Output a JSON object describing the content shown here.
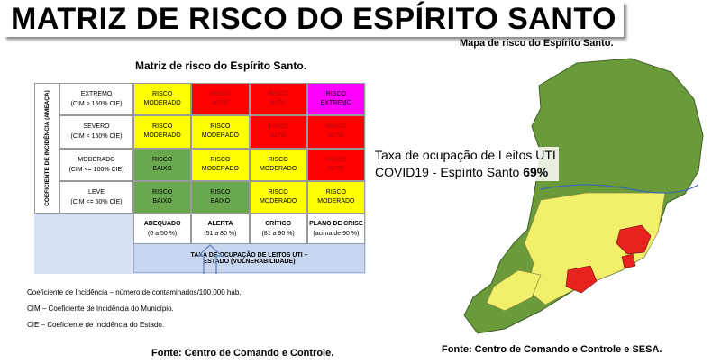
{
  "header": {
    "title": "MATRIZ DE RISCO DO ESPÍRITO SANTO"
  },
  "matrix": {
    "title": "Matriz de risco do Espírito Santo.",
    "y_axis_label": "COEFICIENTE DE INCIDÊNCIA (AMEAÇA)",
    "rows": [
      {
        "label": "EXTREMO",
        "sublabel": "(CIM > 150% CIE)",
        "cells": [
          {
            "text": "RISCO MODERADO",
            "color": "#ffff00"
          },
          {
            "text": "RISCO ALTO",
            "color": "#ff0000"
          },
          {
            "text": "RISCO ALTO",
            "color": "#ff0000"
          },
          {
            "text": "RISCO EXTREMO",
            "color": "#ff00ff"
          }
        ]
      },
      {
        "label": "SEVERO",
        "sublabel": "(CIM < 150% CIE)",
        "cells": [
          {
            "text": "RISCO MODERADO",
            "color": "#ffff00"
          },
          {
            "text": "RISCO MODERADO",
            "color": "#ffff00"
          },
          {
            "text": "RISCO ALTO",
            "color": "#ff0000"
          },
          {
            "text": "RISCO ALTO",
            "color": "#ff0000"
          }
        ]
      },
      {
        "label": "MODERADO",
        "sublabel": "(CIM <= 100% CIE)",
        "cells": [
          {
            "text": "RISCO BAIXO",
            "color": "#6aa84f"
          },
          {
            "text": "RISCO MODERADO",
            "color": "#ffff00"
          },
          {
            "text": "RISCO MODERADO",
            "color": "#ffff00"
          },
          {
            "text": "RISCO ALTO",
            "color": "#ff0000"
          }
        ]
      },
      {
        "label": "LEVE",
        "sublabel": "(CIM <= 50% CIE)",
        "cells": [
          {
            "text": "RISCO BAIXO",
            "color": "#6aa84f"
          },
          {
            "text": "RISCO BAIXO",
            "color": "#6aa84f"
          },
          {
            "text": "RISCO MODERADO",
            "color": "#ffff00"
          },
          {
            "text": "RISCO MODERADO",
            "color": "#ffff00"
          }
        ]
      }
    ],
    "columns": [
      {
        "label": "ADEQUADO",
        "sublabel": "(0 a 50 %)"
      },
      {
        "label": "ALERTA",
        "sublabel": "(51 a 80 %)"
      },
      {
        "label": "CRÍTICO",
        "sublabel": "(81 a 90 %)"
      },
      {
        "label": "PLANO DE CRISE",
        "sublabel": "(acima de 90 %)"
      }
    ],
    "x_axis_label": "TAXA DE OCUPAÇÃO DE LEITOS UTI – ESTADO (VULNERABILIDADE)",
    "notes": [
      "Coeficiente de Incidência – número de contaminados/100.000 hab.",
      "CIM – Coeficiente de Incidência do Município.",
      "CIE – Coeficiente de Incidência do Estado."
    ],
    "source": "Fonte: Centro de Comando e Controle."
  },
  "map": {
    "title": "Mapa de risco do Espírito Santo.",
    "occupancy_line1": "Taxa de ocupação de Leitos UTI",
    "occupancy_line2": "COVID19 - Espírito Santo",
    "occupancy_value": "69%",
    "source": "Fonte: Centro de Comando e Controle e SESA."
  }
}
